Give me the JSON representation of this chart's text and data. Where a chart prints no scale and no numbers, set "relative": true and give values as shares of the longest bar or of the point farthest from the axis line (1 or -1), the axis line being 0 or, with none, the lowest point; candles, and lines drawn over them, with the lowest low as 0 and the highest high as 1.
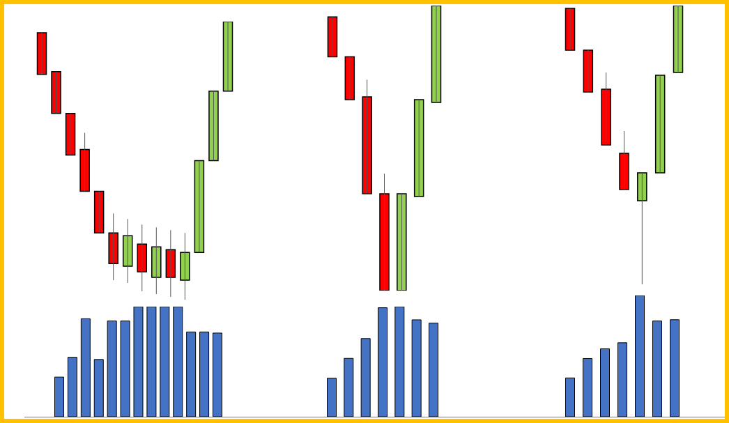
{
  "chart_data": [
    {
      "type": "candlestick",
      "relative": true,
      "categories": [
        null,
        null,
        null,
        null,
        null,
        null,
        null,
        null,
        null,
        null,
        null,
        null,
        null,
        null
      ],
      "ohlc": [
        [
          0.96,
          0.96,
          0.81,
          0.81
        ],
        [
          0.82,
          0.82,
          0.67,
          0.67
        ],
        [
          0.67,
          0.67,
          0.52,
          0.52
        ],
        [
          0.54,
          0.6,
          0.39,
          0.39
        ],
        [
          0.39,
          0.39,
          0.24,
          0.24
        ],
        [
          0.24,
          0.31,
          0.07,
          0.13
        ],
        [
          0.12,
          0.29,
          0.06,
          0.23
        ],
        [
          0.2,
          0.27,
          0.03,
          0.1
        ],
        [
          0.08,
          0.26,
          0.02,
          0.19
        ],
        [
          0.18,
          0.25,
          0.01,
          0.08
        ],
        [
          0.07,
          0.24,
          0,
          0.17
        ],
        [
          0.17,
          0.5,
          0.17,
          0.5
        ],
        [
          0.5,
          0.75,
          0.5,
          0.75
        ],
        [
          0.75,
          1,
          0.75,
          1
        ]
      ],
      "colors": [
        "#ff0000",
        "#ff0000",
        "#ff0000",
        "#ff0000",
        "#ff0000",
        "#ff0000",
        "#92d050",
        "#ff0000",
        "#92d050",
        "#ff0000",
        "#92d050",
        "#92d050",
        "#92d050",
        "#92d050"
      ]
    },
    {
      "type": "candlestick",
      "relative": true,
      "categories": [
        null,
        null,
        null,
        null,
        null,
        null,
        null
      ],
      "ohlc": [
        [
          0.96,
          0.96,
          0.82,
          0.82
        ],
        [
          0.82,
          0.82,
          0.67,
          0.67
        ],
        [
          0.68,
          0.74,
          0.34,
          0.34
        ],
        [
          0.34,
          0.41,
          0,
          0
        ],
        [
          0,
          0.34,
          0,
          0.34
        ],
        [
          0.33,
          0.67,
          0.33,
          0.67
        ],
        [
          0.66,
          1,
          0.66,
          1
        ]
      ],
      "colors": [
        "#ff0000",
        "#ff0000",
        "#ff0000",
        "#ff0000",
        "#92d050",
        "#92d050",
        "#92d050"
      ]
    },
    {
      "type": "candlestick",
      "relative": true,
      "categories": [
        null,
        null,
        null,
        null,
        null,
        null,
        null
      ],
      "ohlc": [
        [
          0.99,
          0.99,
          0.84,
          0.84
        ],
        [
          0.84,
          0.84,
          0.69,
          0.69
        ],
        [
          0.7,
          0.76,
          0.5,
          0.5
        ],
        [
          0.47,
          0.55,
          0.34,
          0.34
        ],
        [
          0.3,
          0.4,
          0,
          0.4
        ],
        [
          0.4,
          0.75,
          0.4,
          0.75
        ],
        [
          0.76,
          1,
          0.76,
          1
        ]
      ],
      "colors": [
        "#ff0000",
        "#ff0000",
        "#ff0000",
        "#ff0000",
        "#92d050",
        "#92d050",
        "#92d050"
      ]
    },
    {
      "type": "bar",
      "relative": true,
      "categories": [
        null,
        null,
        null,
        null,
        null,
        null,
        null,
        null,
        null,
        null,
        null,
        null,
        null
      ],
      "color": "#4472c4",
      "values": [
        0.36,
        0.54,
        0.89,
        0.52,
        0.87,
        0.87,
        1,
        1,
        1,
        1,
        0.77,
        0.77,
        0.76
      ]
    },
    {
      "type": "bar",
      "relative": true,
      "categories": [
        null,
        null,
        null,
        null,
        null,
        null,
        null
      ],
      "color": "#4472c4",
      "values": [
        0.35,
        0.53,
        0.71,
        0.99,
        1,
        0.88,
        0.85
      ]
    },
    {
      "type": "bar",
      "relative": true,
      "categories": [
        null,
        null,
        null,
        null,
        null,
        null,
        null
      ],
      "color": "#4472c4",
      "values": [
        0.32,
        0.48,
        0.56,
        0.61,
        1,
        0.79,
        0.8
      ]
    }
  ]
}
